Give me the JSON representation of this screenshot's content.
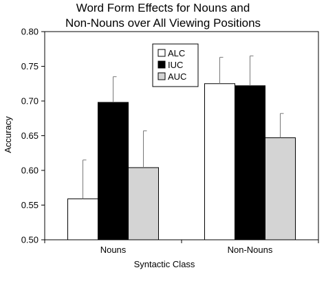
{
  "chart_data": {
    "type": "bar",
    "title": [
      "Word Form Effects for Nouns and",
      "Non-Nouns over All Viewing Positions"
    ],
    "xlabel": "Syntactic Class",
    "ylabel": "Accuracy",
    "categories": [
      "Nouns",
      "Non-Nouns"
    ],
    "ylim": [
      0.5,
      0.8
    ],
    "yticks": [
      "0.50",
      "0.55",
      "0.60",
      "0.65",
      "0.70",
      "0.75",
      "0.80"
    ],
    "grid": false,
    "legend_position": "top-center",
    "series": [
      {
        "name": "ALC",
        "color": "#ffffff",
        "values": [
          0.559,
          0.725
        ],
        "errors": [
          0.056,
          0.038
        ]
      },
      {
        "name": "IUC",
        "color": "#000000",
        "values": [
          0.698,
          0.722
        ],
        "errors": [
          0.037,
          0.043
        ]
      },
      {
        "name": "AUC",
        "color": "#d4d4d4",
        "values": [
          0.604,
          0.647
        ],
        "errors": [
          0.053,
          0.035
        ]
      }
    ]
  }
}
